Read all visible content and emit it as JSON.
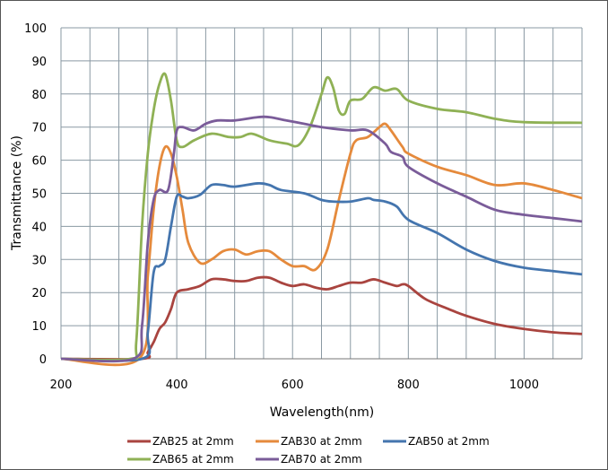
{
  "chart_data": {
    "type": "line",
    "title": "",
    "xlabel": "Wavelength(nm)",
    "ylabel": "Transmittance (%)",
    "xlim": [
      200,
      1100
    ],
    "ylim": [
      0,
      100
    ],
    "xticks": [
      200,
      400,
      600,
      800,
      1000
    ],
    "yticks": [
      0,
      10,
      20,
      30,
      40,
      50,
      60,
      70,
      80,
      90,
      100
    ],
    "x_grid_step": 50,
    "grid": true,
    "legend_position": "bottom",
    "series": [
      {
        "name": "ZAB25 at 2mm",
        "color": "#A9443F",
        "points": [
          [
            200,
            0
          ],
          [
            340,
            0
          ],
          [
            350,
            2
          ],
          [
            360,
            5
          ],
          [
            370,
            9
          ],
          [
            380,
            11
          ],
          [
            390,
            15
          ],
          [
            400,
            20
          ],
          [
            420,
            21
          ],
          [
            440,
            22
          ],
          [
            460,
            24
          ],
          [
            480,
            24
          ],
          [
            500,
            23.5
          ],
          [
            520,
            23.5
          ],
          [
            540,
            24.5
          ],
          [
            560,
            24.5
          ],
          [
            580,
            23
          ],
          [
            600,
            22
          ],
          [
            620,
            22.5
          ],
          [
            640,
            21.5
          ],
          [
            660,
            21
          ],
          [
            680,
            22
          ],
          [
            700,
            23
          ],
          [
            720,
            23
          ],
          [
            740,
            24
          ],
          [
            760,
            23
          ],
          [
            780,
            22
          ],
          [
            790,
            22.5
          ],
          [
            800,
            22
          ],
          [
            830,
            18
          ],
          [
            870,
            15
          ],
          [
            900,
            13
          ],
          [
            950,
            10.5
          ],
          [
            1000,
            9
          ],
          [
            1050,
            8
          ],
          [
            1100,
            7.5
          ]
        ]
      },
      {
        "name": "ZAB30 at 2mm",
        "color": "#E58A3C",
        "points": [
          [
            200,
            0
          ],
          [
            335,
            0
          ],
          [
            350,
            25
          ],
          [
            360,
            45
          ],
          [
            370,
            58
          ],
          [
            380,
            64
          ],
          [
            390,
            62
          ],
          [
            400,
            55
          ],
          [
            410,
            45
          ],
          [
            420,
            35
          ],
          [
            440,
            29
          ],
          [
            460,
            30
          ],
          [
            480,
            32.5
          ],
          [
            500,
            33
          ],
          [
            520,
            31.5
          ],
          [
            540,
            32.5
          ],
          [
            560,
            32.5
          ],
          [
            580,
            30
          ],
          [
            600,
            28
          ],
          [
            620,
            28
          ],
          [
            640,
            27
          ],
          [
            660,
            33
          ],
          [
            680,
            48
          ],
          [
            700,
            62
          ],
          [
            710,
            66
          ],
          [
            730,
            67
          ],
          [
            750,
            70
          ],
          [
            760,
            71
          ],
          [
            770,
            69
          ],
          [
            790,
            64
          ],
          [
            800,
            62
          ],
          [
            850,
            58
          ],
          [
            900,
            55.5
          ],
          [
            950,
            52.5
          ],
          [
            1000,
            53
          ],
          [
            1050,
            51
          ],
          [
            1100,
            48.5
          ]
        ]
      },
      {
        "name": "ZAB50 at 2mm",
        "color": "#4475AE",
        "points": [
          [
            200,
            0
          ],
          [
            340,
            0
          ],
          [
            350,
            8
          ],
          [
            360,
            26
          ],
          [
            370,
            28
          ],
          [
            380,
            30
          ],
          [
            390,
            40
          ],
          [
            400,
            49
          ],
          [
            410,
            49
          ],
          [
            420,
            48.5
          ],
          [
            440,
            49.5
          ],
          [
            460,
            52.5
          ],
          [
            480,
            52.5
          ],
          [
            500,
            52
          ],
          [
            540,
            53
          ],
          [
            560,
            52.5
          ],
          [
            580,
            51
          ],
          [
            620,
            50
          ],
          [
            650,
            48
          ],
          [
            670,
            47.5
          ],
          [
            700,
            47.5
          ],
          [
            730,
            48.5
          ],
          [
            740,
            48
          ],
          [
            760,
            47.5
          ],
          [
            780,
            46
          ],
          [
            800,
            42
          ],
          [
            850,
            38
          ],
          [
            900,
            33
          ],
          [
            950,
            29.5
          ],
          [
            1000,
            27.5
          ],
          [
            1050,
            26.5
          ],
          [
            1100,
            25.5
          ]
        ]
      },
      {
        "name": "ZAB65 at 2mm",
        "color": "#8FB155",
        "points": [
          [
            200,
            0
          ],
          [
            320,
            0
          ],
          [
            330,
            5
          ],
          [
            340,
            40
          ],
          [
            350,
            62
          ],
          [
            360,
            75
          ],
          [
            370,
            83
          ],
          [
            380,
            86
          ],
          [
            390,
            78
          ],
          [
            400,
            66
          ],
          [
            410,
            64
          ],
          [
            430,
            66
          ],
          [
            460,
            68
          ],
          [
            490,
            67
          ],
          [
            510,
            67
          ],
          [
            530,
            68
          ],
          [
            560,
            66
          ],
          [
            590,
            65
          ],
          [
            610,
            64.5
          ],
          [
            630,
            70
          ],
          [
            650,
            80
          ],
          [
            660,
            85
          ],
          [
            670,
            82
          ],
          [
            680,
            75
          ],
          [
            690,
            74
          ],
          [
            700,
            78
          ],
          [
            720,
            78.5
          ],
          [
            740,
            82
          ],
          [
            760,
            81
          ],
          [
            780,
            81.5
          ],
          [
            800,
            78
          ],
          [
            850,
            75.5
          ],
          [
            900,
            74.5
          ],
          [
            950,
            72.5
          ],
          [
            1000,
            71.5
          ],
          [
            1100,
            71.3
          ]
        ]
      },
      {
        "name": "ZAB70 at 2mm",
        "color": "#7A5C99",
        "points": [
          [
            200,
            0
          ],
          [
            325,
            0
          ],
          [
            340,
            10
          ],
          [
            350,
            35
          ],
          [
            360,
            48
          ],
          [
            370,
            51
          ],
          [
            385,
            51
          ],
          [
            395,
            62
          ],
          [
            400,
            69
          ],
          [
            410,
            70
          ],
          [
            430,
            69
          ],
          [
            450,
            71
          ],
          [
            470,
            72
          ],
          [
            500,
            72
          ],
          [
            540,
            73
          ],
          [
            560,
            73
          ],
          [
            590,
            72
          ],
          [
            620,
            71
          ],
          [
            650,
            70
          ],
          [
            700,
            69
          ],
          [
            730,
            69
          ],
          [
            760,
            65
          ],
          [
            770,
            62.5
          ],
          [
            790,
            61
          ],
          [
            800,
            58
          ],
          [
            850,
            53
          ],
          [
            900,
            49
          ],
          [
            950,
            45
          ],
          [
            1000,
            43.5
          ],
          [
            1050,
            42.5
          ],
          [
            1100,
            41.5
          ]
        ]
      }
    ]
  }
}
